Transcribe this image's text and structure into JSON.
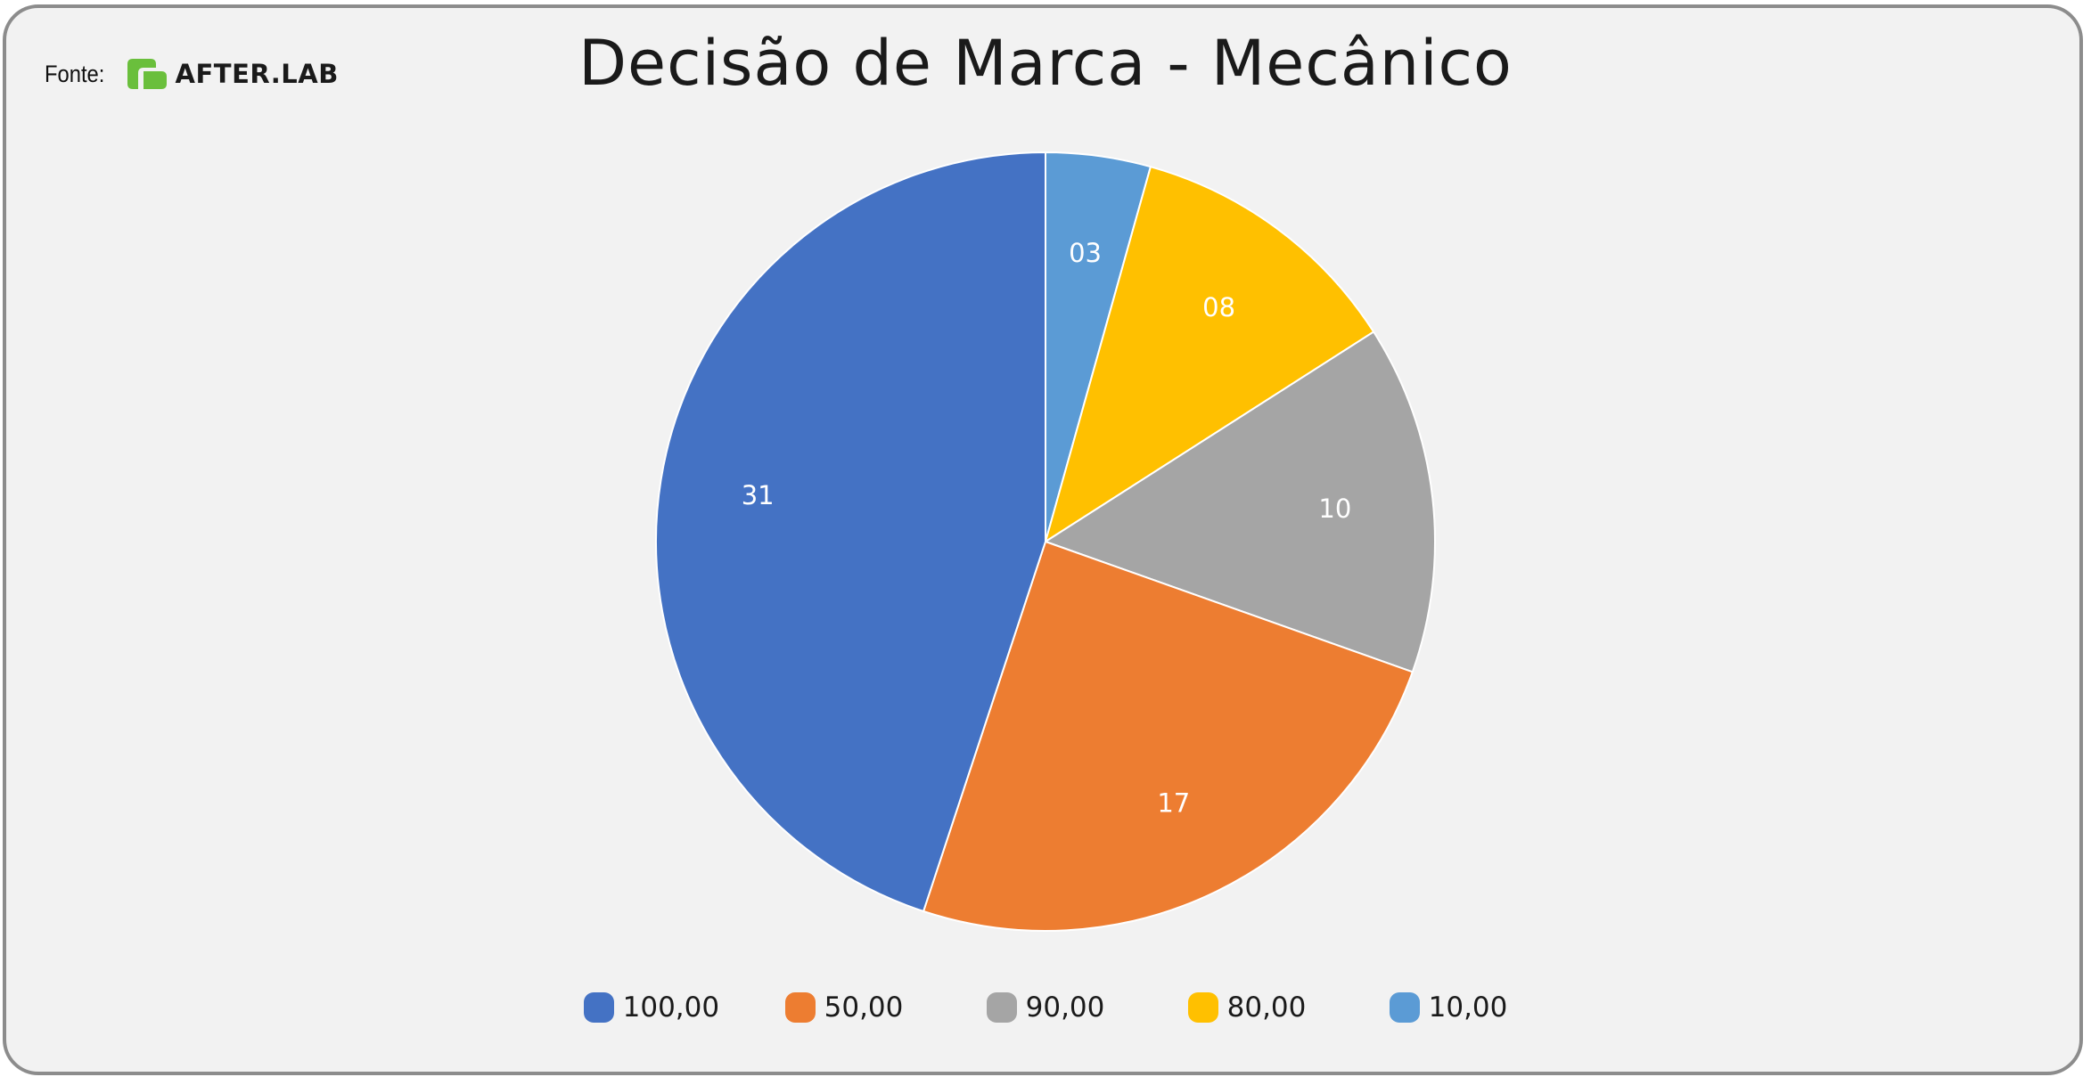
{
  "source": {
    "label": "Fonte:",
    "logo_text": "AFTER.LAB",
    "logo_color": "#6abf3c"
  },
  "chart_data": {
    "type": "pie",
    "title": "Decisão de Marca - Mecânico",
    "start_angle_deg": 0,
    "direction": "clockwise",
    "slices": [
      {
        "name": "10,00",
        "value": 3,
        "data_label": "03",
        "color": "#5b9bd5"
      },
      {
        "name": "80,00",
        "value": 8,
        "data_label": "08",
        "color": "#ffc000"
      },
      {
        "name": "90,00",
        "value": 10,
        "data_label": "10",
        "color": "#a5a5a5"
      },
      {
        "name": "50,00",
        "value": 17,
        "data_label": "17",
        "color": "#ed7d31"
      },
      {
        "name": "100,00",
        "value": 31,
        "data_label": "31",
        "color": "#4472c4"
      }
    ],
    "legend": {
      "position": "bottom",
      "order": [
        "100,00",
        "50,00",
        "90,00",
        "80,00",
        "10,00"
      ]
    },
    "data_label_color": "#ffffff"
  }
}
